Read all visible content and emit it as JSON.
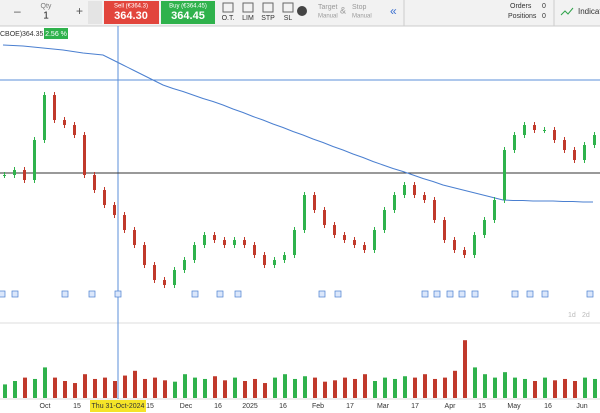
{
  "toolbar": {
    "qty_label": "Qty",
    "qty": "1",
    "minus": "–",
    "plus": "+",
    "sell_label": "Sell (€364.3)",
    "sell_price": "364.30",
    "buy_label": "Buy (€364.45)",
    "buy_price": "364.45",
    "order_types": [
      "O.T.",
      "LIM",
      "STP",
      "SL"
    ],
    "target": "Target",
    "target_sub": "Manual",
    "amp": "&",
    "stop": "Stop",
    "stop_sub": "Manual",
    "collapse": "«",
    "orders_label": "Orders",
    "orders": "0",
    "positions_label": "Positions",
    "positions": "0",
    "indicators": "Indicato"
  },
  "chart_header": {
    "symbol": "CBOE)",
    "price": "364.35",
    "change": "2.56 %"
  },
  "chart_data": {
    "type": "candlestick",
    "ylim": [
      336,
      388
    ],
    "levels": [
      361.4,
      380
    ],
    "closes": [
      361,
      362,
      360,
      368,
      377,
      372,
      371,
      369,
      361,
      358,
      355,
      353,
      350,
      347,
      343,
      340,
      339,
      342,
      344,
      347,
      349,
      348,
      347,
      348,
      347,
      345,
      343,
      344,
      345,
      350,
      357,
      354,
      351,
      349,
      348,
      347,
      346,
      350,
      354,
      357,
      359,
      357,
      356,
      352,
      348,
      346,
      345,
      349,
      352,
      356,
      366,
      369,
      371,
      370,
      370,
      368,
      366,
      364,
      367,
      369
    ],
    "ma": [
      387,
      386.9,
      386.8,
      386.6,
      386.4,
      386.2,
      386,
      385.7,
      385.4,
      385.2,
      385,
      384,
      383,
      382,
      381,
      380,
      379,
      378.3,
      377.7,
      377,
      376.3,
      375.7,
      375,
      374.2,
      373.5,
      372.7,
      372,
      371.2,
      370.5,
      369.7,
      369,
      368.2,
      367.5,
      366.7,
      366,
      365.2,
      364.5,
      363.7,
      363,
      362.3,
      361.7,
      361,
      360.3,
      359.7,
      359,
      358.5,
      358,
      357.5,
      357,
      356.5,
      356,
      355.9,
      355.9,
      355.8,
      355.8,
      355.8,
      355.7,
      355.7,
      355.6,
      355.6
    ],
    "volumes": [
      20,
      25,
      30,
      28,
      45,
      30,
      25,
      22,
      35,
      28,
      30,
      25,
      33,
      40,
      28,
      30,
      26,
      24,
      35,
      30,
      28,
      32,
      26,
      30,
      25,
      28,
      22,
      30,
      35,
      28,
      32,
      30,
      24,
      26,
      30,
      28,
      35,
      25,
      30,
      28,
      32,
      30,
      35,
      28,
      30,
      40,
      85,
      45,
      35,
      30,
      38,
      30,
      28,
      25,
      30,
      26,
      28,
      25,
      30,
      28
    ],
    "vlim": [
      0,
      100
    ],
    "x_labels": [
      "Oct",
      "15",
      "Thu 31-Oct-2024",
      "15",
      "Dec",
      "16",
      "2025",
      "16",
      "Feb",
      "17",
      "Mar",
      "17",
      "Apr",
      "15",
      "May",
      "16",
      "Jun"
    ],
    "range_buttons": [
      "1d",
      "2d"
    ]
  }
}
